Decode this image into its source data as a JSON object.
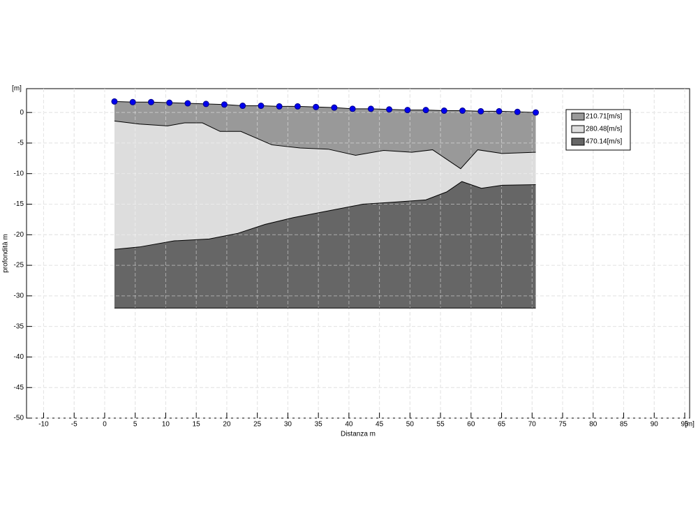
{
  "chart_data": {
    "type": "profile",
    "xlabel": "Distanza m",
    "ylabel": "profondità m",
    "xunit": "[m]",
    "yunit": "[m]",
    "xlim": [
      -12.8,
      95.8
    ],
    "ylim": [
      -50,
      3.9
    ],
    "xticks": [
      -10,
      -5,
      0,
      5,
      10,
      15,
      20,
      25,
      30,
      35,
      40,
      45,
      50,
      55,
      60,
      65,
      70,
      75,
      80,
      85,
      90,
      95
    ],
    "yticks": [
      0,
      -5,
      -10,
      -15,
      -20,
      -25,
      -30,
      -35,
      -40,
      -45,
      -50
    ],
    "grid": true,
    "legend": "upper right",
    "sensors": {
      "color": "#0000ee",
      "x": [
        1.6,
        4.6,
        7.6,
        10.6,
        13.6,
        16.6,
        19.6,
        22.6,
        25.6,
        28.6,
        31.6,
        34.6,
        37.6,
        40.6,
        43.6,
        46.6,
        49.6,
        52.6,
        55.6,
        58.6,
        61.6,
        64.6,
        67.6,
        70.6
      ],
      "y": [
        1.8,
        1.7,
        1.7,
        1.6,
        1.5,
        1.4,
        1.3,
        1.1,
        1.1,
        1.0,
        1.0,
        0.9,
        0.8,
        0.6,
        0.6,
        0.5,
        0.4,
        0.4,
        0.3,
        0.3,
        0.2,
        0.2,
        0.1,
        0.0
      ]
    },
    "layers": [
      {
        "name": "210.71[m/s]",
        "color": "#999999",
        "x": [
          1.6,
          5.7,
          10.3,
          13.1,
          16,
          18.9,
          22.3,
          27.4,
          32,
          36.6,
          41.1,
          45.7,
          50.3,
          53.7,
          58.3,
          61.1,
          65.1,
          70.6
        ],
        "y": [
          -1.4,
          -1.9,
          -2.2,
          -1.7,
          -1.7,
          -3.1,
          -3.1,
          -5.3,
          -5.8,
          -6,
          -7,
          -6.2,
          -6.5,
          -6.1,
          -9.2,
          -6.1,
          -6.7,
          -6.5
        ]
      },
      {
        "name": "280.48[m/s]",
        "color": "#dddddd",
        "x": [
          1.6,
          5.7,
          11.4,
          17.1,
          21.7,
          26.3,
          30.9,
          36.6,
          42.3,
          46.9,
          52.6,
          56,
          58.5,
          61.7,
          65.1,
          70.6
        ],
        "y": [
          -22.4,
          -22,
          -21,
          -20.7,
          -19.8,
          -18.3,
          -17.2,
          -16.1,
          -15,
          -14.7,
          -14.3,
          -13,
          -11.3,
          -12.4,
          -11.9,
          -11.8
        ]
      },
      {
        "name": "470.14[m/s]",
        "color": "#666666",
        "x": [
          1.6,
          70.6
        ],
        "y": [
          -32,
          -32
        ]
      }
    ]
  }
}
